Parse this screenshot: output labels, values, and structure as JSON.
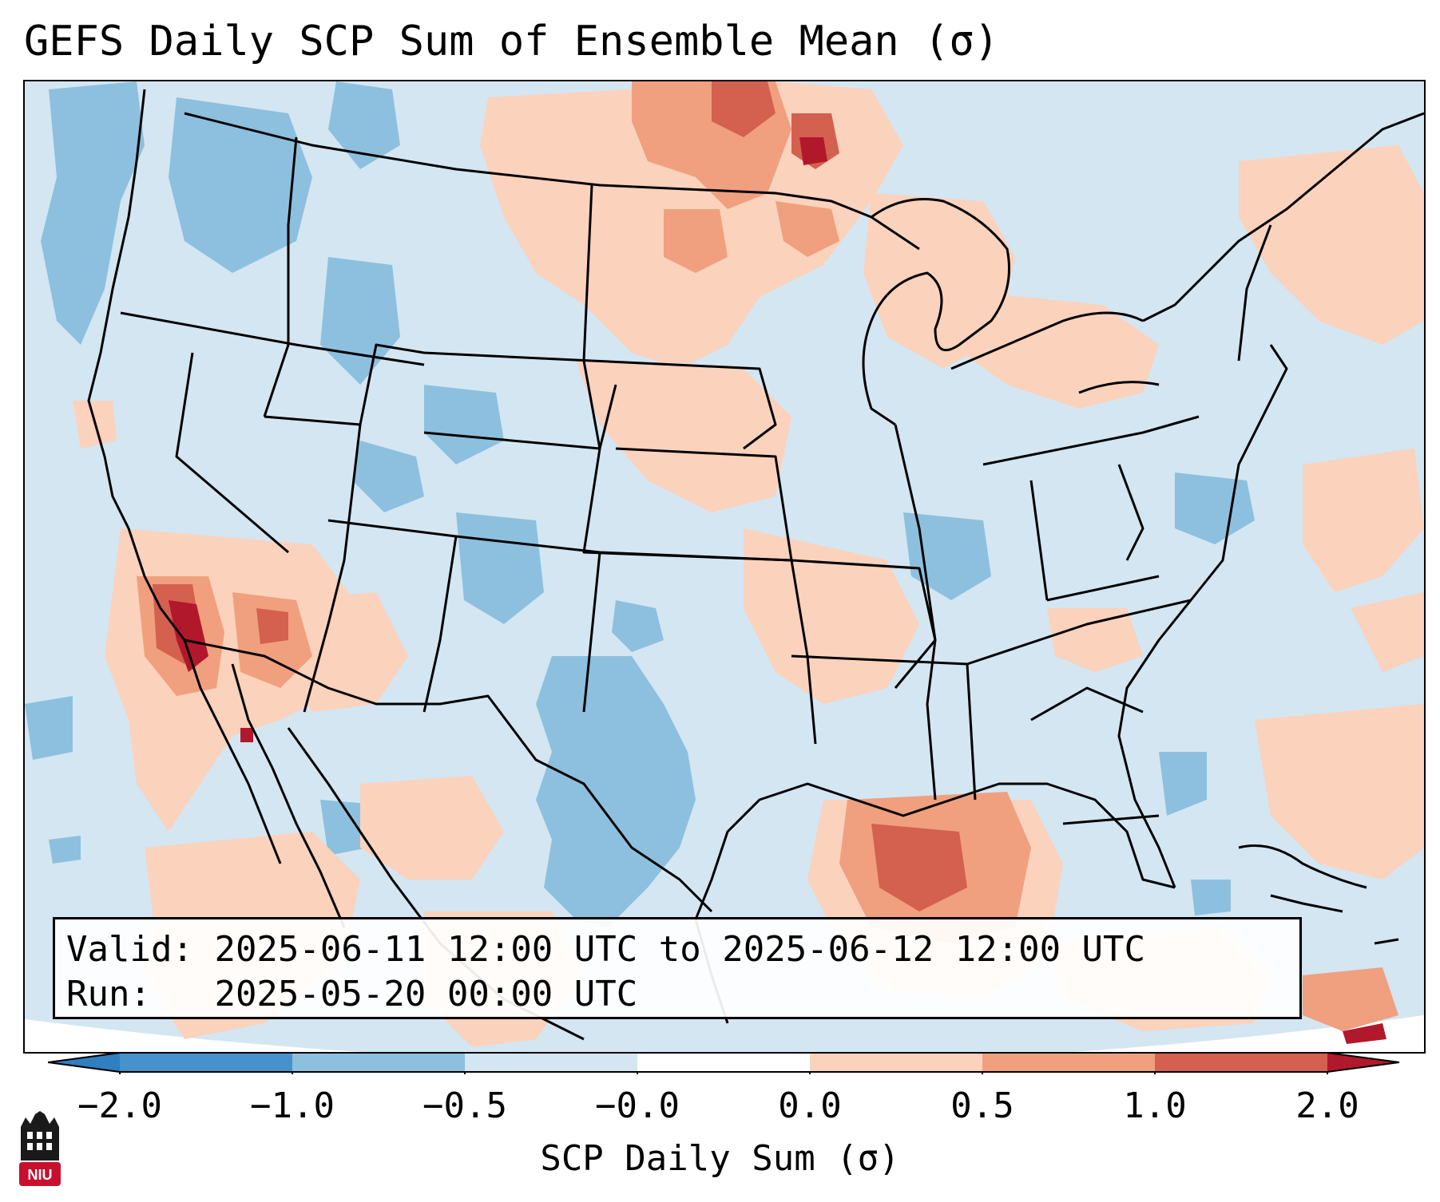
{
  "title": "GEFS Daily SCP Sum of Ensemble Mean (σ)",
  "info": {
    "valid_label": "Valid:",
    "valid_value": "2025-06-11 12:00 UTC to 2025-06-12 12:00 UTC",
    "run_label": "Run:",
    "run_value": "2025-05-20 00:00 UTC"
  },
  "colorbar": {
    "label": "SCP Daily Sum (σ)",
    "ticks": [
      "−2.0",
      "−1.0",
      "−0.5",
      "−0.0",
      "0.0",
      "0.5",
      "1.0",
      "2.0"
    ],
    "colors": [
      "#2f7fc1",
      "#8dc0df",
      "#d3e6f2",
      "#ffffff",
      "#fbd2bc",
      "#f0a07e",
      "#d4604f",
      "#b2182b"
    ]
  },
  "logo_text": "NIU"
}
